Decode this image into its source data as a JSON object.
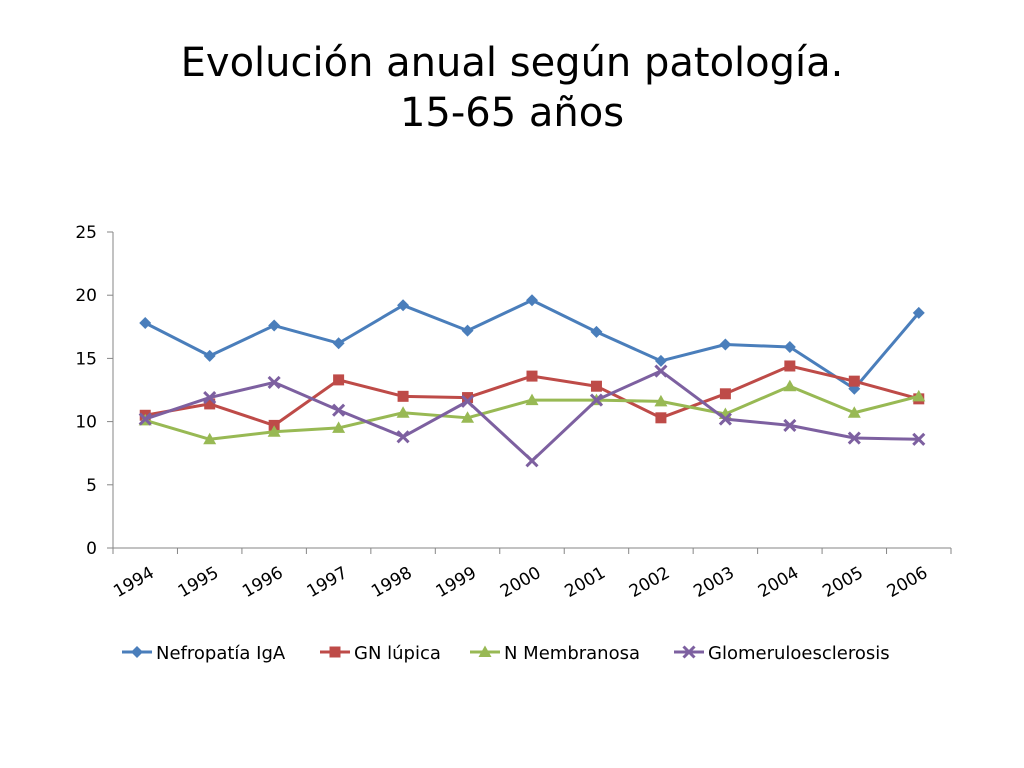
{
  "slide": {
    "title_line1": "Evolución anual según patología.",
    "title_line2": "15-65 años"
  },
  "chart_data": {
    "type": "line",
    "title": "",
    "xlabel": "",
    "ylabel": "",
    "ylim": [
      0,
      25
    ],
    "yticks": [
      0,
      5,
      10,
      15,
      20,
      25
    ],
    "categories": [
      "1994",
      "1995",
      "1996",
      "1997",
      "1998",
      "1999",
      "2000",
      "2001",
      "2002",
      "2003",
      "2004",
      "2005",
      "2006"
    ],
    "legend_position": "bottom",
    "grid": false,
    "series": [
      {
        "name": "Nefropatía IgA",
        "color": "#4a7ebb",
        "marker": "diamond",
        "values": [
          17.8,
          15.2,
          17.6,
          16.2,
          19.2,
          17.2,
          19.6,
          17.1,
          14.8,
          16.1,
          15.9,
          12.6,
          18.6
        ]
      },
      {
        "name": "GN lúpica",
        "color": "#be4b48",
        "marker": "square",
        "values": [
          10.5,
          11.4,
          9.7,
          13.3,
          12.0,
          11.9,
          13.6,
          12.8,
          10.3,
          12.2,
          14.4,
          13.2,
          11.8
        ]
      },
      {
        "name": "N Membranosa",
        "color": "#98b954",
        "marker": "triangle",
        "values": [
          10.1,
          8.6,
          9.2,
          9.5,
          10.7,
          10.3,
          11.7,
          11.7,
          11.6,
          10.6,
          12.8,
          10.7,
          12.0
        ]
      },
      {
        "name": "Glomeruloesclerosis",
        "color": "#7d60a0",
        "marker": "x",
        "values": [
          10.2,
          11.9,
          13.1,
          10.9,
          8.8,
          11.6,
          6.9,
          11.7,
          14.0,
          10.2,
          9.7,
          8.7,
          8.6
        ]
      }
    ]
  }
}
